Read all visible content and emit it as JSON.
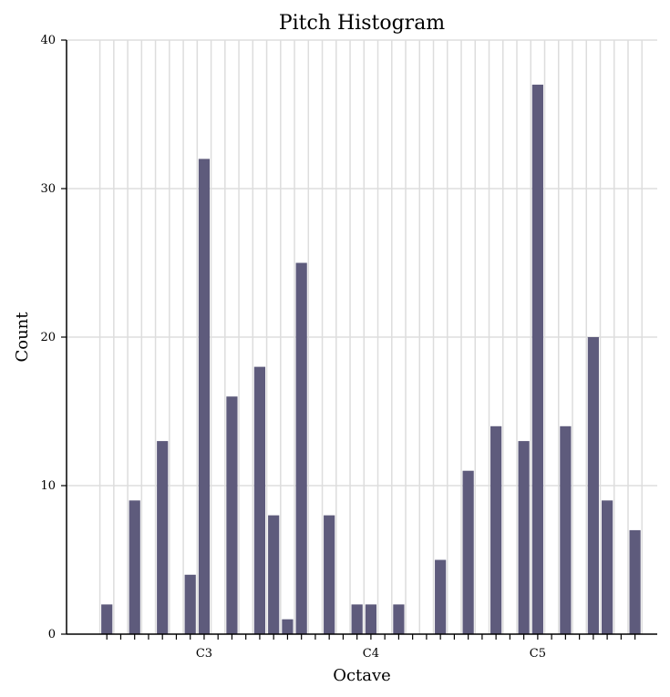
{
  "chart_data": {
    "type": "bar",
    "title": "Pitch Histogram",
    "xlabel": "Octave",
    "ylabel": "Count",
    "ylim": [
      0,
      40
    ],
    "yticks": [
      0,
      10,
      20,
      30,
      40
    ],
    "x_range": [
      -2.9,
      39.6
    ],
    "octave_ticks": [
      {
        "x": 7,
        "label": "C3"
      },
      {
        "x": 19,
        "label": "C4"
      },
      {
        "x": 31,
        "label": "C5"
      }
    ],
    "minor_tick_positions": [
      0,
      1,
      2,
      3,
      4,
      5,
      6,
      7,
      8,
      9,
      10,
      11,
      12,
      13,
      14,
      15,
      16,
      17,
      18,
      19,
      20,
      21,
      22,
      23,
      24,
      25,
      26,
      27,
      28,
      29,
      30,
      31,
      32,
      33,
      34,
      35,
      36,
      37,
      38
    ],
    "gridline_positions": [
      0,
      1,
      2,
      3,
      4,
      5,
      6,
      7,
      8,
      9,
      10,
      11,
      12,
      13,
      14,
      15,
      16,
      17,
      18,
      19,
      20,
      21,
      22,
      23,
      24,
      25,
      26,
      27,
      28,
      29,
      30,
      31,
      32,
      33,
      34,
      35,
      36,
      37,
      38,
      39
    ],
    "bars": [
      {
        "x": 0,
        "value": 2
      },
      {
        "x": 2,
        "value": 9
      },
      {
        "x": 4,
        "value": 13
      },
      {
        "x": 6,
        "value": 4
      },
      {
        "x": 7,
        "value": 32
      },
      {
        "x": 9,
        "value": 16
      },
      {
        "x": 11,
        "value": 18
      },
      {
        "x": 12,
        "value": 8
      },
      {
        "x": 13,
        "value": 1
      },
      {
        "x": 14,
        "value": 25
      },
      {
        "x": 16,
        "value": 8
      },
      {
        "x": 18,
        "value": 2
      },
      {
        "x": 19,
        "value": 2
      },
      {
        "x": 21,
        "value": 2
      },
      {
        "x": 24,
        "value": 5
      },
      {
        "x": 26,
        "value": 11
      },
      {
        "x": 28,
        "value": 14
      },
      {
        "x": 30,
        "value": 13
      },
      {
        "x": 31,
        "value": 37
      },
      {
        "x": 33,
        "value": 14
      },
      {
        "x": 35,
        "value": 20
      },
      {
        "x": 36,
        "value": 9
      },
      {
        "x": 38,
        "value": 7
      }
    ],
    "grid": "on",
    "legend": "none",
    "colors": {
      "bar": "#5e5b7c",
      "grid": "#dddddd",
      "axis": "#000000"
    }
  }
}
